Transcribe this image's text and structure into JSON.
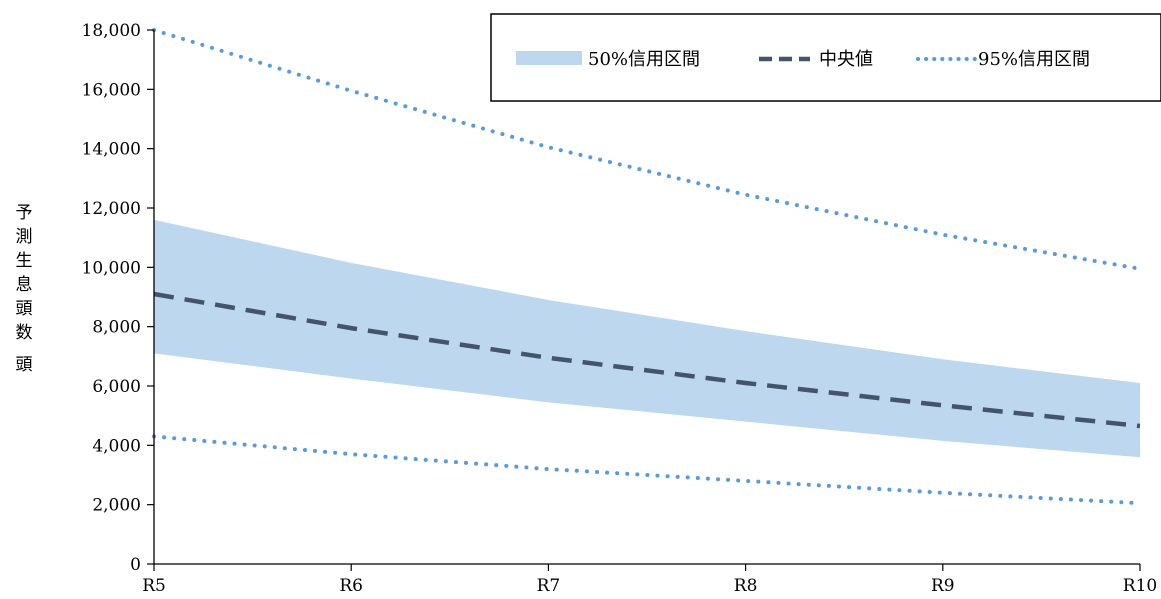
{
  "chart_data": {
    "type": "area",
    "title": "",
    "xlabel": "",
    "ylabel": "予測生息頭数 頭",
    "categories": [
      "R5",
      "R6",
      "R7",
      "R8",
      "R9",
      "R10"
    ],
    "ylim": [
      0,
      18000
    ],
    "yticks": [
      0,
      2000,
      4000,
      6000,
      8000,
      10000,
      12000,
      14000,
      16000,
      18000
    ],
    "ytick_labels": [
      "0",
      "2,000",
      "4,000",
      "6,000",
      "8,000",
      "10,000",
      "12,000",
      "14,000",
      "16,000",
      "18,000"
    ],
    "grid": false,
    "legend_position": "top-right",
    "series": [
      {
        "name": "50%信用区間",
        "kind": "band",
        "lower": [
          7100,
          6250,
          5450,
          4800,
          4150,
          3600
        ],
        "upper": [
          11600,
          10150,
          8900,
          7850,
          6900,
          6100
        ],
        "color": "#bdd7ee"
      },
      {
        "name": "中央値",
        "kind": "dashed-line",
        "values": [
          9100,
          7950,
          6950,
          6100,
          5350,
          4650
        ],
        "color": "#44546a"
      },
      {
        "name": "95%信用区間",
        "kind": "dotted-lines",
        "lower": [
          4300,
          3700,
          3200,
          2800,
          2400,
          2050
        ],
        "upper": [
          18000,
          15950,
          14050,
          12450,
          11100,
          9950
        ],
        "color": "#5b9bd5"
      }
    ]
  }
}
